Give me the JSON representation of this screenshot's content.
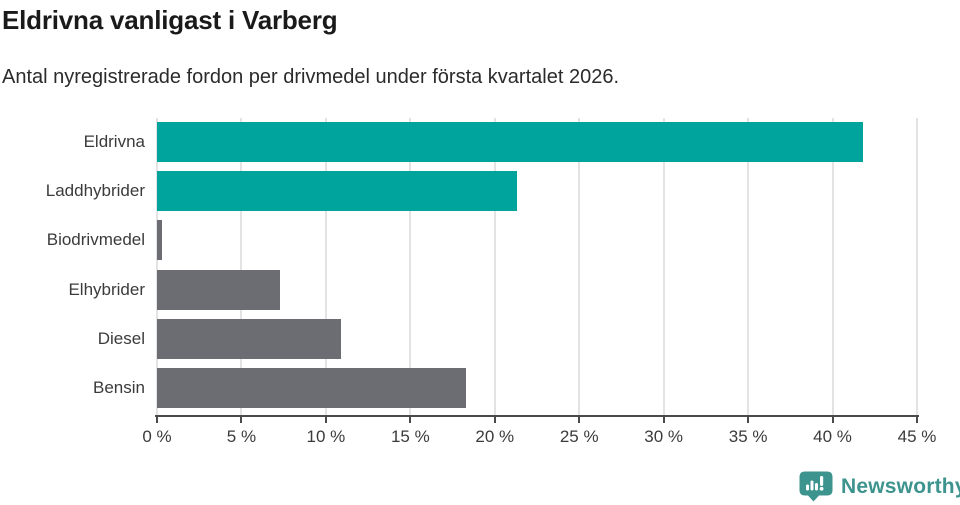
{
  "header": {
    "title": "Eldrivna vanligast i Varberg",
    "subtitle": "Antal nyregistrerade fordon per drivmedel under första kvartalet 2026."
  },
  "chart_data": {
    "type": "bar",
    "orientation": "horizontal",
    "title": "Eldrivna vanligast i Varberg",
    "subtitle": "Antal nyregistrerade fordon per drivmedel under första kvartalet 2026.",
    "categories": [
      "Eldrivna",
      "Laddhybrider",
      "Biodrivmedel",
      "Elhybrider",
      "Diesel",
      "Bensin"
    ],
    "values": [
      41.8,
      21.3,
      0.3,
      7.3,
      10.9,
      18.3
    ],
    "unit": "%",
    "xlabel": "",
    "ylabel": "",
    "xlim": [
      0,
      45
    ],
    "x_ticks": [
      0,
      5,
      10,
      15,
      20,
      25,
      30,
      35,
      40,
      45
    ],
    "x_tick_suffix": " %",
    "grid": true,
    "legend": "none",
    "bar_colors": [
      "#00a49c",
      "#00a49c",
      "#6c6c73",
      "#6c6c73",
      "#6c6c73",
      "#6c6c73"
    ],
    "highlight_color": "#00a49c",
    "default_color": "#6c6c73",
    "grid_color": "#e3e3e3",
    "axis_color": "#4a4a4a"
  },
  "footer": {
    "brand": "Newsworthy",
    "brand_color": "#3d938d",
    "logo_icon": "newsworthy-chart-bubble-icon"
  }
}
